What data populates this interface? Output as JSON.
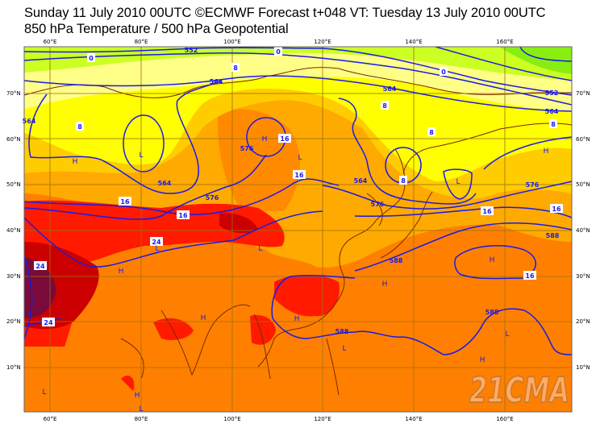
{
  "header": {
    "title_line1": "Sunday 11 July 2010 00UTC ©ECMWF Forecast t+048 VT: Tuesday 13 July 2010 00UTC",
    "title_line2": "850 hPa Temperature / 500 hPa Geopotential"
  },
  "map": {
    "lon_labels": [
      "60°E",
      "80°E",
      "100°E",
      "120°E",
      "140°E",
      "160°E"
    ],
    "lat_labels": [
      "70°N",
      "60°N",
      "50°N",
      "40°N",
      "30°N",
      "20°N",
      "10°N"
    ],
    "geopotential_labels": {
      "g552": "552",
      "g564": "564",
      "g576": "576",
      "g588": "588"
    },
    "temperature_labels": {
      "t0": "0",
      "t8": "8",
      "t16": "16",
      "t24": "24"
    },
    "centers": {
      "high": "H",
      "low": "L"
    },
    "watermark": "21CMA",
    "colors": {
      "green": "#88ee11",
      "yellow_green": "#ccff22",
      "pale_yellow": "#ffff88",
      "yellow": "#ffff00",
      "gold": "#ffcc00",
      "light_orange": "#ffaa00",
      "orange": "#ff8000",
      "red": "#ff1a00",
      "dark_red": "#cc0000",
      "maroon": "#7a0a3a",
      "contour": "#1a1ae6",
      "coast": "#7a2a00",
      "grid": "#9a7010"
    }
  }
}
